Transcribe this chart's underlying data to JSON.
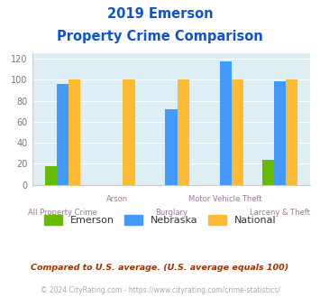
{
  "title_line1": "2019 Emerson",
  "title_line2": "Property Crime Comparison",
  "categories": [
    "All Property Crime",
    "Arson",
    "Burglary",
    "Motor Vehicle Theft",
    "Larceny & Theft"
  ],
  "emerson": [
    18,
    0,
    0,
    0,
    24
  ],
  "nebraska": [
    96,
    0,
    72,
    118,
    99
  ],
  "national": [
    100,
    100,
    100,
    100,
    100
  ],
  "emerson_color": "#66bb00",
  "nebraska_color": "#4499ff",
  "national_color": "#ffbb33",
  "title_color": "#1155cc",
  "xlabel_color": "#997799",
  "ylabel_ticks_color": "#777777",
  "legend_label_color": "#333333",
  "legend_labels": [
    "Emerson",
    "Nebraska",
    "National"
  ],
  "footnote1": "Compared to U.S. average. (U.S. average equals 100)",
  "footnote2": "© 2024 CityRating.com - https://www.cityrating.com/crime-statistics/",
  "footnote1_color": "#993300",
  "footnote2_color": "#aaaaaa",
  "ylim": [
    0,
    125
  ],
  "yticks": [
    0,
    20,
    40,
    60,
    80,
    100,
    120
  ],
  "bar_width": 0.22,
  "figure_bg_color": "#ffffff",
  "plot_bg_color": "#ddeef5"
}
